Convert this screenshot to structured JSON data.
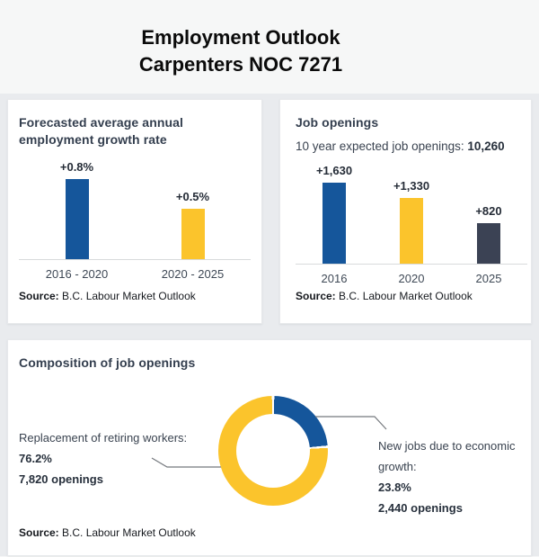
{
  "page": {
    "title_line1": "Employment Outlook",
    "title_line2": "Carpenters NOC 7271",
    "source_label": "Source:"
  },
  "colors": {
    "blue": "#15569B",
    "yellow": "#FBC42C",
    "dark_slate": "#3B4254",
    "heading_text": "#333E4E"
  },
  "chart_data": [
    {
      "id": "growth-rate-bar-chart",
      "type": "bar",
      "title": "Forecasted average annual employment growth rate",
      "categories": [
        "2016 - 2020",
        "2020 - 2025"
      ],
      "values": [
        0.8,
        0.5
      ],
      "value_labels": [
        "+0.8%",
        "+0.5%"
      ],
      "bar_colors": [
        "#15569B",
        "#FBC42C"
      ],
      "ylim": [
        0,
        0.8
      ],
      "grid": false,
      "legend": "none",
      "source": "B.C. Labour Market Outlook"
    },
    {
      "id": "job-openings-bar-chart",
      "type": "bar",
      "title": "Job openings",
      "subtitle_prefix": "10 year expected job openings: ",
      "subtitle_total": "10,260",
      "categories": [
        "2016",
        "2020",
        "2025"
      ],
      "values": [
        1630,
        1330,
        820
      ],
      "value_labels": [
        "+1,630",
        "+1,330",
        "+820"
      ],
      "bar_colors": [
        "#15569B",
        "#FBC42C",
        "#3B4254"
      ],
      "ylim": [
        0,
        1630
      ],
      "grid": false,
      "legend": "none",
      "source": "B.C. Labour Market Outlook"
    },
    {
      "id": "composition-donut-chart",
      "type": "pie",
      "title": "Composition of job openings",
      "slices": [
        {
          "label": "New jobs due to economic growth:",
          "percent": 23.8,
          "percent_label": "23.8%",
          "openings_label": "2,440 openings",
          "color": "#15569B"
        },
        {
          "label": "Replacement of retiring workers:",
          "percent": 76.2,
          "percent_label": "76.2%",
          "openings_label": "7,820 openings",
          "color": "#FBC42C"
        }
      ],
      "source": "B.C. Labour Market Outlook"
    }
  ]
}
